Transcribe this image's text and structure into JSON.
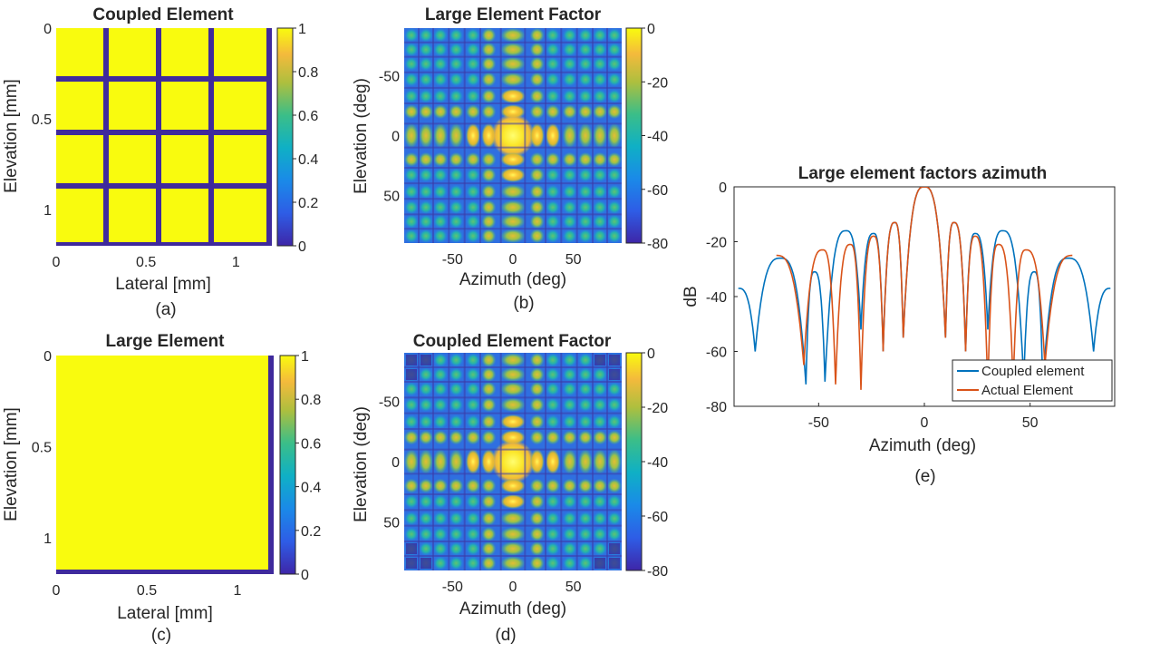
{
  "chart_data": [
    {
      "id": "a",
      "type": "heatmap",
      "title": "Coupled Element",
      "caption": "(a)",
      "xlabel": "Lateral [mm]",
      "ylabel": "Elevation [mm]",
      "x_ticks": [
        "0",
        "0.5",
        "1"
      ],
      "y_ticks": [
        "0",
        "0.5",
        "1"
      ],
      "x_tick_values": [
        0,
        0.5,
        1
      ],
      "y_tick_values": [
        0,
        0.5,
        1
      ],
      "xlim": [
        0,
        1.2
      ],
      "ylim": [
        0,
        1.2
      ],
      "grid_divisions": 4,
      "colorbar_ticks": [
        "1",
        "0.8",
        "0.6",
        "0.4",
        "0.2",
        "0"
      ],
      "colorbar_range": [
        0,
        1
      ],
      "description_values": {
        "element": 1,
        "kerf": 0
      }
    },
    {
      "id": "b",
      "type": "heatmap",
      "title": "Large Element Factor",
      "caption": "(b)",
      "xlabel": "Azimuth (deg)",
      "ylabel": "Elevation (deg)",
      "x_ticks": [
        "-50",
        "0",
        "50"
      ],
      "y_ticks": [
        "-50",
        "0",
        "50"
      ],
      "x_tick_values": [
        -50,
        0,
        50
      ],
      "y_tick_values": [
        -50,
        0,
        50
      ],
      "xlim": [
        -90,
        90
      ],
      "ylim": [
        -90,
        90
      ],
      "colorbar_ticks": [
        "0",
        "-20",
        "-40",
        "-60",
        "-80"
      ],
      "colorbar_range": [
        -80,
        0
      ]
    },
    {
      "id": "c",
      "type": "heatmap",
      "title": "Large Element",
      "caption": "(c)",
      "xlabel": "Lateral [mm]",
      "ylabel": "Elevation [mm]",
      "x_ticks": [
        "0",
        "0.5",
        "1"
      ],
      "y_ticks": [
        "0",
        "0.5",
        "1"
      ],
      "x_tick_values": [
        0,
        0.5,
        1
      ],
      "y_tick_values": [
        0,
        0.5,
        1
      ],
      "xlim": [
        0,
        1.2
      ],
      "ylim": [
        0,
        1.2
      ],
      "colorbar_ticks": [
        "1",
        "0.8",
        "0.6",
        "0.4",
        "0.2",
        "0"
      ],
      "colorbar_range": [
        0,
        1
      ]
    },
    {
      "id": "d",
      "type": "heatmap",
      "title": "Coupled Element Factor",
      "caption": "(d)",
      "xlabel": "Azimuth (deg)",
      "ylabel": "Elevation (deg)",
      "x_ticks": [
        "-50",
        "0",
        "50"
      ],
      "y_ticks": [
        "-50",
        "0",
        "50"
      ],
      "x_tick_values": [
        -50,
        0,
        50
      ],
      "y_tick_values": [
        -50,
        0,
        50
      ],
      "xlim": [
        -90,
        90
      ],
      "ylim": [
        -90,
        90
      ],
      "colorbar_ticks": [
        "0",
        "-20",
        "-40",
        "-60",
        "-80"
      ],
      "colorbar_range": [
        -80,
        0
      ]
    },
    {
      "id": "e",
      "type": "line",
      "title": "Large element factors azimuth",
      "caption": "(e)",
      "xlabel": "Azimuth (deg)",
      "ylabel": "dB",
      "x_ticks": [
        "-50",
        "0",
        "50"
      ],
      "y_ticks": [
        "0",
        "-20",
        "-40",
        "-60",
        "-80"
      ],
      "x_tick_values": [
        -50,
        0,
        50
      ],
      "y_tick_values": [
        0,
        -20,
        -40,
        -60,
        -80
      ],
      "xlim": [
        -90,
        90
      ],
      "ylim": [
        -80,
        0
      ],
      "legend_position": "bottom-right",
      "series": [
        {
          "name": "Coupled element",
          "color": "#0072BD",
          "null_positions": [
            -80,
            -56,
            -47,
            -30,
            -19.5,
            -10,
            10,
            19.5,
            30,
            47,
            56,
            80
          ],
          "lobe_peaks": [
            {
              "x": -88,
              "y": -37
            },
            {
              "x": -68,
              "y": -26
            },
            {
              "x": -52,
              "y": -31
            },
            {
              "x": -37,
              "y": -16
            },
            {
              "x": -24,
              "y": -17
            },
            {
              "x": -14,
              "y": -13
            },
            {
              "x": 0,
              "y": 0
            },
            {
              "x": 14,
              "y": -13
            },
            {
              "x": 24,
              "y": -17
            },
            {
              "x": 37,
              "y": -16
            },
            {
              "x": 52,
              "y": -31
            },
            {
              "x": 68,
              "y": -26
            },
            {
              "x": 88,
              "y": -37
            }
          ],
          "null_depths": [
            -60,
            -72,
            -71,
            -52,
            -60,
            -55,
            -55,
            -60,
            -52,
            -71,
            -72,
            -60
          ]
        },
        {
          "name": "Actual Element",
          "color": "#D95319",
          "null_positions": [
            -57,
            -42,
            -30,
            -19.5,
            -10,
            10,
            19.5,
            30,
            42,
            57
          ],
          "lobe_peaks": [
            {
              "x": -70,
              "y": -25
            },
            {
              "x": -48,
              "y": -23
            },
            {
              "x": -35,
              "y": -21
            },
            {
              "x": -24,
              "y": -18
            },
            {
              "x": -14,
              "y": -13
            },
            {
              "x": 0,
              "y": 0
            },
            {
              "x": 14,
              "y": -13
            },
            {
              "x": 24,
              "y": -18
            },
            {
              "x": 35,
              "y": -21
            },
            {
              "x": 48,
              "y": -23
            },
            {
              "x": 70,
              "y": -25
            }
          ],
          "null_depths": [
            -65,
            -72,
            -74,
            -60,
            -55,
            -55,
            -60,
            -74,
            -72,
            -65
          ]
        }
      ]
    }
  ]
}
